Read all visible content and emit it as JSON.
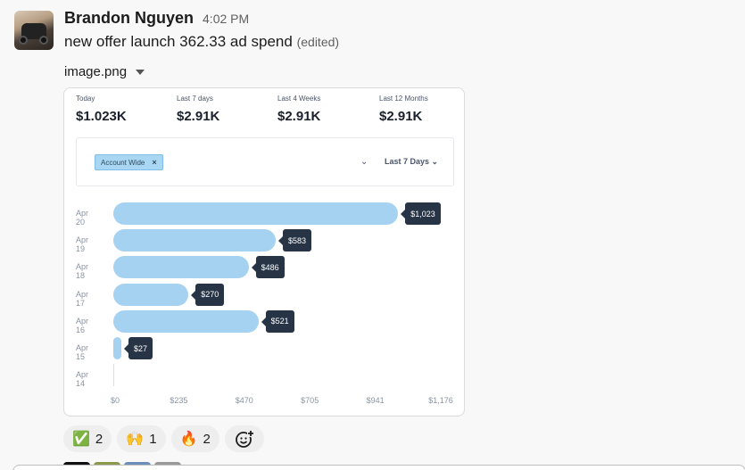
{
  "message": {
    "author": "Brandon Nguyen",
    "time": "4:02 PM",
    "text": "new offer launch 362.33 ad spend",
    "edited": "(edited)",
    "file_name": "image.png"
  },
  "stats": [
    {
      "label": "Today",
      "value": "$1.023K"
    },
    {
      "label": "Last 7 days",
      "value": "$2.91K"
    },
    {
      "label": "Last 4 Weeks",
      "value": "$2.91K"
    },
    {
      "label": "Last 12 Months",
      "value": "$2.91K"
    }
  ],
  "filter": {
    "chip": "Account Wide",
    "chip_remove": "×",
    "chevron": "⌄",
    "range": "Last 7 Days ⌄"
  },
  "chart_data": {
    "type": "bar",
    "orientation": "horizontal",
    "categories": [
      "Apr 20",
      "Apr 19",
      "Apr 18",
      "Apr 17",
      "Apr 16",
      "Apr 15",
      "Apr 14"
    ],
    "values": [
      1023,
      583,
      486,
      270,
      521,
      27,
      0
    ],
    "value_labels": [
      "$1,023",
      "$583",
      "$486",
      "$270",
      "$521",
      "$27",
      ""
    ],
    "x_ticks": [
      "$0",
      "$235",
      "$470",
      "$705",
      "$941",
      "$1,176"
    ],
    "xlim": [
      0,
      1176
    ],
    "bar_color": "#a6d2f1",
    "grid": false
  },
  "reactions": [
    {
      "emoji": "✅",
      "count": "2"
    },
    {
      "emoji": "🙌",
      "count": "1"
    },
    {
      "emoji": "🔥",
      "count": "2"
    }
  ],
  "add_reaction_icon": "add-reaction-icon"
}
